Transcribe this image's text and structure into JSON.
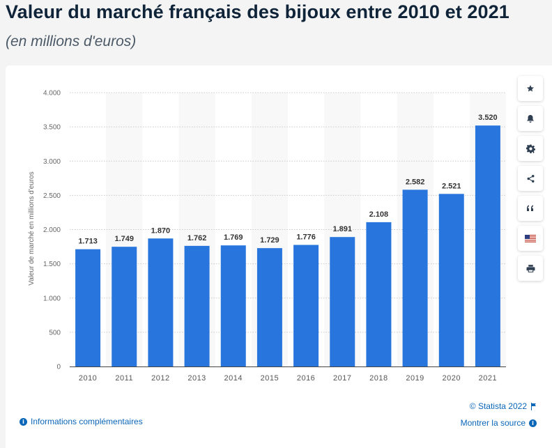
{
  "header": {
    "title": "Valeur du marché français des bijoux entre 2010 et 2021",
    "subtitle": "(en millions d'euros)"
  },
  "chart_data": {
    "type": "bar",
    "categories": [
      "2010",
      "2011",
      "2012",
      "2013",
      "2014",
      "2015",
      "2016",
      "2017",
      "2018",
      "2019",
      "2020",
      "2021"
    ],
    "values": [
      1713,
      1749,
      1870,
      1762,
      1769,
      1729,
      1776,
      1891,
      2108,
      2582,
      2521,
      3520
    ],
    "value_labels": [
      "1.713",
      "1.749",
      "1.870",
      "1.762",
      "1.769",
      "1.729",
      "1.776",
      "1.891",
      "2.108",
      "2.582",
      "2.521",
      "3.520"
    ],
    "title": "Valeur du marché français des bijoux entre 2010 et 2021",
    "xlabel": "",
    "ylabel": "Valeur de marché en millions d'euros",
    "ylim": [
      0,
      4000
    ],
    "yticks": [
      0,
      500,
      1000,
      1500,
      2000,
      2500,
      3000,
      3500,
      4000
    ],
    "ytick_labels": [
      "0",
      "500",
      "1.000",
      "1.500",
      "2.000",
      "2.500",
      "3.000",
      "3.500",
      "4.000"
    ],
    "grid": true,
    "bar_color": "#2876dd"
  },
  "toolbar": {
    "items": [
      {
        "name": "favorite-button",
        "icon": "star-icon"
      },
      {
        "name": "alert-button",
        "icon": "bell-icon"
      },
      {
        "name": "settings-button",
        "icon": "gear-icon"
      },
      {
        "name": "share-button",
        "icon": "share-icon"
      },
      {
        "name": "cite-button",
        "icon": "quote-icon"
      },
      {
        "name": "language-button",
        "icon": "us-flag-icon"
      },
      {
        "name": "print-button",
        "icon": "printer-icon"
      }
    ]
  },
  "footer": {
    "credit": "© Statista 2022",
    "info_link": "Informations complémentaires",
    "source_link": "Montrer la source"
  },
  "colors": {
    "accent": "#0a66b8",
    "bar": "#2876dd",
    "title": "#0f2438"
  }
}
